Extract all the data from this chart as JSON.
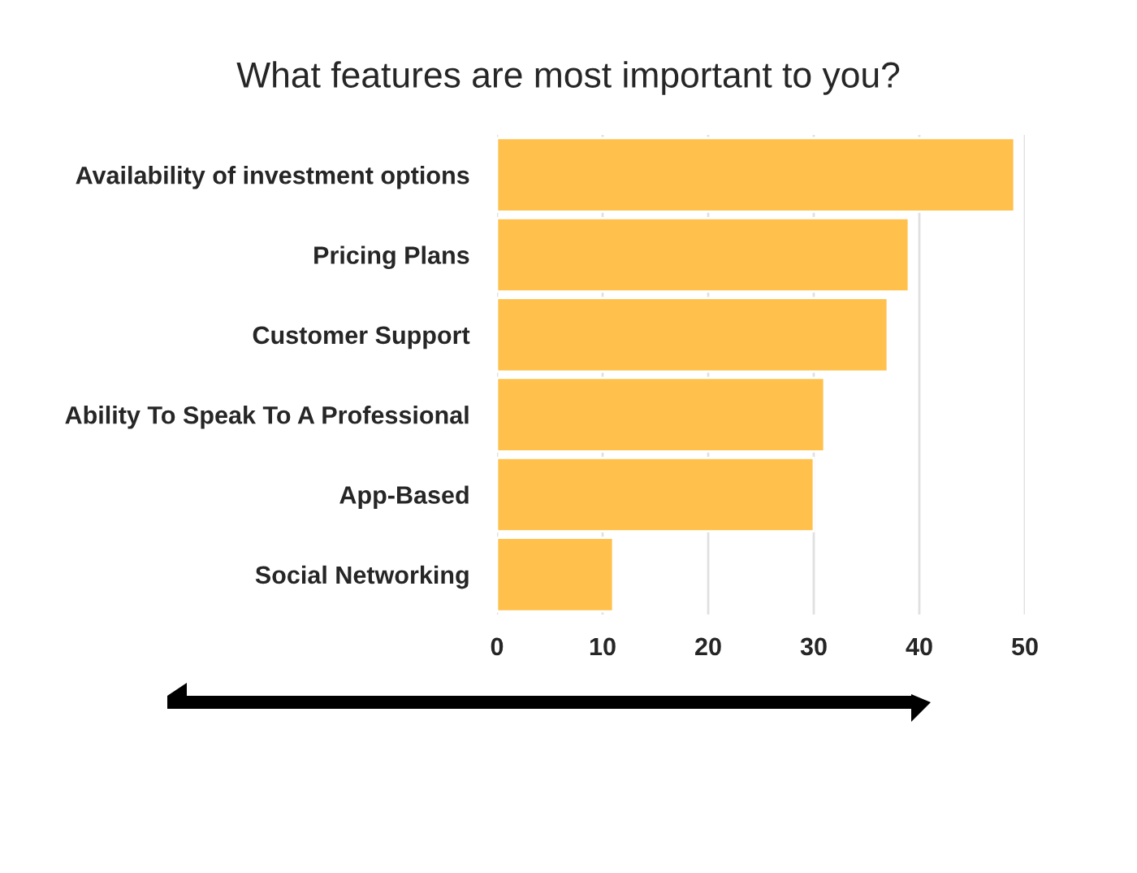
{
  "chart_data": {
    "type": "bar",
    "orientation": "horizontal",
    "title": "What features are most important to you?",
    "categories": [
      "Availability of investment options",
      "Pricing Plans",
      "Customer Support",
      "Ability To Speak To A Professional",
      "App-Based",
      "Social Networking"
    ],
    "values": [
      49,
      39,
      37,
      31,
      30,
      11
    ],
    "color": "#ffc04c",
    "xlim": [
      0,
      50
    ],
    "xticks": [
      0,
      10,
      20,
      30,
      40,
      50
    ],
    "grid": "x"
  }
}
